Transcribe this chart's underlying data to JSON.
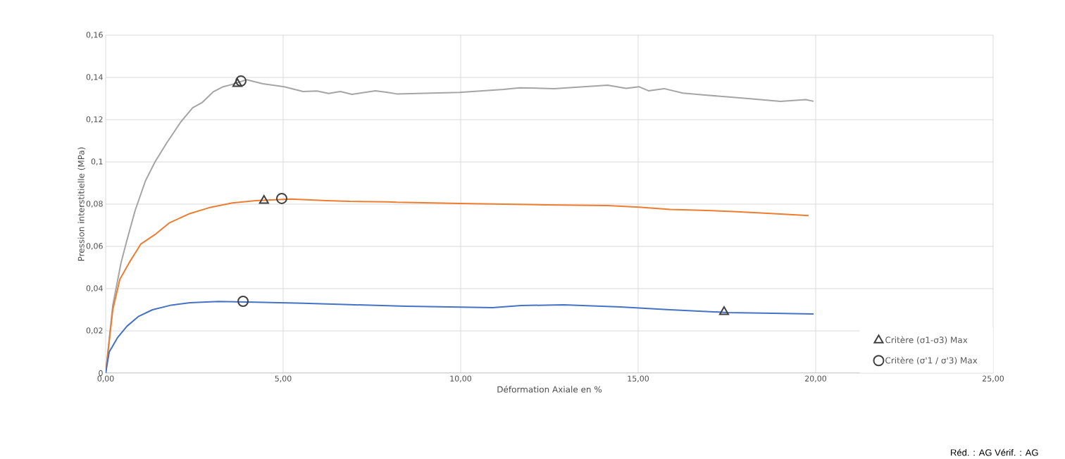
{
  "chart_data": {
    "type": "line",
    "xlabel": "Déformation Axiale en %",
    "ylabel": "Pression interstitielle (MPa)",
    "xlim": [
      0,
      25
    ],
    "ylim": [
      0,
      0.16
    ],
    "xticks": [
      {
        "value": 0,
        "label": "0,00"
      },
      {
        "value": 5,
        "label": "5,00"
      },
      {
        "value": 10,
        "label": "10,00"
      },
      {
        "value": 15,
        "label": "15,00"
      },
      {
        "value": 20,
        "label": "20,00"
      },
      {
        "value": 25,
        "label": "25,00"
      }
    ],
    "yticks": [
      {
        "value": 0,
        "label": "0"
      },
      {
        "value": 0.02,
        "label": "0,02"
      },
      {
        "value": 0.04,
        "label": "0,04"
      },
      {
        "value": 0.06,
        "label": "0,06"
      },
      {
        "value": 0.08,
        "label": "0,08"
      },
      {
        "value": 0.1,
        "label": "0,1"
      },
      {
        "value": 0.12,
        "label": "0,12"
      },
      {
        "value": 0.14,
        "label": "0,14"
      },
      {
        "value": 0.16,
        "label": "0,16"
      }
    ],
    "grid": true,
    "legend": "bottom right",
    "line_style": "solid",
    "annotations": [
      "Réd. : AG Vérif. : AG"
    ],
    "series": [
      {
        "type": "line",
        "color": "#a5a5a5",
        "x": [
          0,
          0.2,
          0.43,
          0.6,
          0.83,
          1.12,
          1.39,
          1.72,
          2.12,
          2.45,
          2.71,
          3.04,
          3.31,
          3.57,
          3.97,
          4.43,
          5.03,
          5.56,
          5.95,
          6.28,
          6.61,
          6.94,
          7.6,
          7.94,
          8.2,
          9.97,
          11.21,
          11.66,
          12.63,
          14.14,
          14.66,
          15.02,
          15.29,
          15.73,
          16.26,
          16.88,
          17.5,
          18.39,
          19.01,
          19.72,
          19.94
        ],
        "values": [
          0,
          0.032,
          0.052,
          0.063,
          0.077,
          0.091,
          0.1,
          0.109,
          0.119,
          0.1256,
          0.128,
          0.1333,
          0.1356,
          0.1367,
          0.1389,
          0.137,
          0.1356,
          0.1333,
          0.1336,
          0.1324,
          0.1333,
          0.132,
          0.1337,
          0.1329,
          0.1322,
          0.1329,
          0.1343,
          0.1351,
          0.1347,
          0.1363,
          0.1348,
          0.1356,
          0.1337,
          0.1347,
          0.1326,
          0.1317,
          0.1308,
          0.1296,
          0.1287,
          0.1295,
          0.1287
        ]
      },
      {
        "type": "line",
        "color": "#ed7d31",
        "x": [
          0,
          0.2,
          0.4,
          0.66,
          0.99,
          1.39,
          1.79,
          2.38,
          2.91,
          3.57,
          4.23,
          5.22,
          6.22,
          6.88,
          7.94,
          8.2,
          9.97,
          12.36,
          14.14,
          15.02,
          15.9,
          16.79,
          17.68,
          18.74,
          19.8
        ],
        "values": [
          0,
          0.03,
          0.0444,
          0.0522,
          0.0611,
          0.0656,
          0.0711,
          0.0756,
          0.0783,
          0.0806,
          0.0817,
          0.0824,
          0.0817,
          0.0813,
          0.0811,
          0.0809,
          0.0803,
          0.0797,
          0.0793,
          0.0786,
          0.0775,
          0.0771,
          0.0765,
          0.0756,
          0.0746
        ]
      },
      {
        "type": "line",
        "color": "#4472c4",
        "x": [
          0,
          0.1,
          0.33,
          0.6,
          0.93,
          1.32,
          1.85,
          2.38,
          3.17,
          4.23,
          5.56,
          6.88,
          8.47,
          10.9,
          11.7,
          12.9,
          14.5,
          15.9,
          17.5,
          18.8,
          19.94
        ],
        "values": [
          0,
          0.01,
          0.0167,
          0.0222,
          0.0269,
          0.03,
          0.0322,
          0.0333,
          0.0339,
          0.0336,
          0.0331,
          0.0324,
          0.0317,
          0.031,
          0.032,
          0.0323,
          0.0313,
          0.03,
          0.0287,
          0.0283,
          0.028
        ]
      },
      {
        "type": "scatter",
        "name": "Critère (σ1-σ3) Max",
        "color": "#404040",
        "marker": "triangle",
        "x": [
          3.71,
          4.46,
          17.42
        ],
        "values": [
          0.137,
          0.0817,
          0.029
        ]
      },
      {
        "type": "scatter",
        "name": "Critère (σ'1 / σ'3) Max",
        "color": "#404040",
        "marker": "circle",
        "x": [
          3.81,
          4.96,
          3.87
        ],
        "values": [
          0.1383,
          0.0827,
          0.034
        ]
      }
    ]
  }
}
